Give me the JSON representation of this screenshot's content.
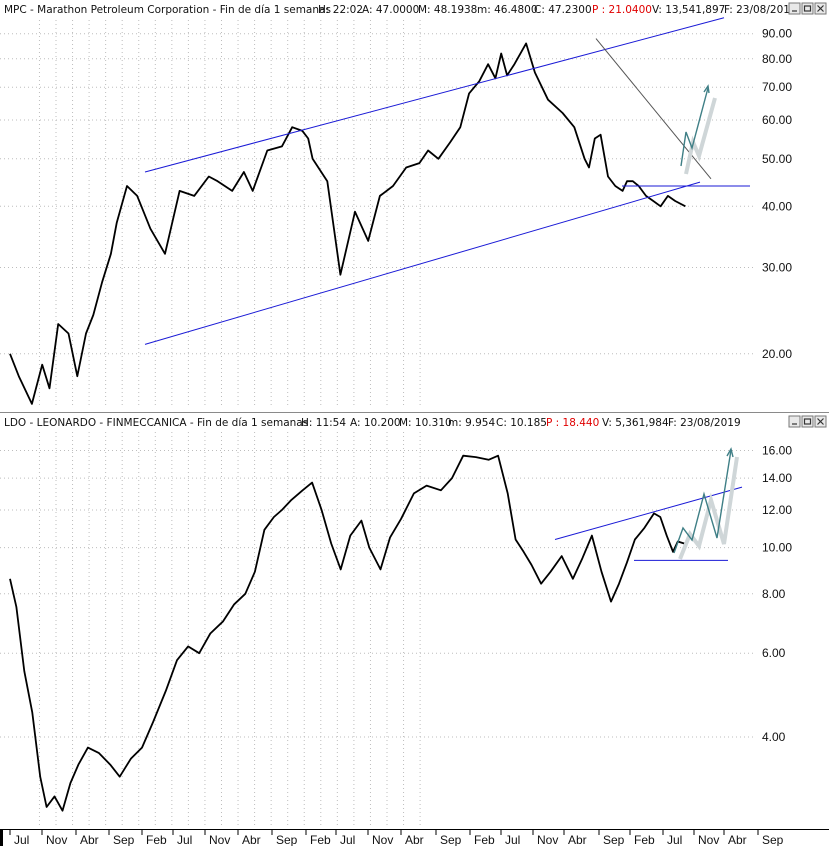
{
  "colors": {
    "price_line": "#000000",
    "channel_line": "#1a1ad6",
    "trend_gray": "#555555",
    "projection": "#3f7f86",
    "projection_shadow": "#cfd6d8",
    "header_red": "#e00000",
    "grid": "#bdbdbd"
  },
  "window_controls": [
    "minimize-icon",
    "restore-icon",
    "close-icon"
  ],
  "chart_data": [
    {
      "type": "line",
      "scale": "log",
      "grid": true,
      "header": {
        "prefix": "MPC - Marathon Petroleum Corporation - Fin de día 1 semanas",
        "h": "H: 22:02",
        "a": "A: 47.0000",
        "m": "M: 48.1938",
        "mn": "m: 46.4800",
        "c": "C: 47.2300",
        "p": "P : 21.0400",
        "v": "V: 13,541,897",
        "f": "F: 23/08/201"
      },
      "yticks": [
        "90.00",
        "80.00",
        "70.00",
        "60.00",
        "50.00",
        "40.00",
        "30.00",
        "20.00"
      ],
      "ylim": [
        15.5,
        96
      ],
      "series": [
        {
          "x": [
            0,
            0.6,
            1.5,
            2.2,
            2.7,
            3.3,
            4.0,
            4.6,
            5.2,
            5.7,
            6.3,
            6.9,
            7.3,
            8.0,
            8.7,
            9.6,
            10.6,
            11.6,
            12.6,
            13.6,
            14.2,
            15.2,
            16.0,
            16.6,
            17.6,
            18.6,
            19.3,
            20.0,
            20.4,
            20.7,
            21.7,
            22.6,
            23.6,
            24.5,
            25.3,
            26.2,
            27.1,
            28.0,
            28.6,
            29.3,
            30.1,
            30.8,
            31.4,
            32.1,
            32.7,
            33.2,
            33.6,
            34.0,
            34.5,
            35.3,
            35.9,
            36.8,
            37.8,
            38.6,
            39.3,
            39.6,
            40.0,
            40.4,
            40.9,
            41.4,
            41.9,
            42.2,
            42.6,
            43.0,
            43.5,
            44.0,
            44.5,
            45.0,
            45.5,
            46.2
          ],
          "values": [
            20,
            18,
            15.8,
            19,
            17,
            23,
            22,
            18,
            22,
            24,
            28,
            32,
            37,
            44,
            42,
            36,
            32,
            43,
            42,
            46,
            45,
            43,
            47,
            43,
            52,
            53,
            58,
            57,
            55,
            50,
            45,
            29,
            39,
            34,
            42,
            44,
            48,
            49,
            52,
            50,
            54,
            58,
            68,
            72,
            78,
            73,
            82,
            74,
            78,
            86,
            75,
            66,
            62,
            58,
            50,
            48,
            55,
            56,
            46,
            44,
            43,
            45,
            45,
            44,
            42,
            41,
            40,
            42,
            41,
            40
          ]
        }
      ],
      "x_tick_labels": [
        "Jul",
        "Nov",
        "Abr",
        "Sep",
        "Feb",
        "Jul",
        "Nov",
        "Abr",
        "Sep",
        "Feb",
        "Jul",
        "Nov",
        "Abr",
        "Sep",
        "Feb",
        "Jul",
        "Nov",
        "Abr",
        "Sep",
        "Feb",
        "Jul",
        "Nov",
        "Abr",
        "Sep"
      ]
    },
    {
      "type": "line",
      "scale": "log",
      "grid": true,
      "header": {
        "prefix": "LDO - LEONARDO - FINMECCANICA - Fin de día 1 semanas",
        "h": "H: 11:54",
        "a": "A: 10.200",
        "m": "M: 10.310",
        "mn": "m: 9.954",
        "c": "C: 10.185",
        "p": "P : 18.440",
        "v": "V: 5,361,984",
        "f": "F: 23/08/2019"
      },
      "yticks": [
        "16.00",
        "14.00",
        "12.00",
        "10.00",
        "8.00",
        "6.00",
        "4.00"
      ],
      "ylim": [
        2.6,
        17.5
      ],
      "series": [
        {
          "x": [
            0,
            0.4,
            0.9,
            1.4,
            1.9,
            2.3,
            2.8,
            3.3,
            3.8,
            4.3,
            4.9,
            5.6,
            6.3,
            6.9,
            7.6,
            8.3,
            9.0,
            9.8,
            10.5,
            11.2,
            11.9,
            12.6,
            13.4,
            14.1,
            14.8,
            15.4,
            16.0,
            16.6,
            17.1,
            17.7,
            18.4,
            19.0,
            19.6,
            20.2,
            20.8,
            21.4,
            22.1,
            22.6,
            23.3,
            23.9,
            24.6,
            25.4,
            26.2,
            27.1,
            27.8,
            28.5,
            29.3,
            30.1,
            30.7,
            31.3,
            31.8,
            32.3,
            32.8,
            33.4,
            34.0,
            34.7,
            35.4,
            36.0,
            36.6,
            37.2,
            37.8,
            38.3,
            38.8,
            39.3,
            39.9,
            40.5,
            40.9,
            41.3,
            41.7,
            42.0,
            42.4
          ],
          "values": [
            8.6,
            7.5,
            5.5,
            4.5,
            3.3,
            2.85,
            3.0,
            2.8,
            3.2,
            3.5,
            3.8,
            3.7,
            3.5,
            3.3,
            3.6,
            3.8,
            4.3,
            5.0,
            5.8,
            6.2,
            6.0,
            6.6,
            7.0,
            7.6,
            8.0,
            8.9,
            10.9,
            11.6,
            12.0,
            12.6,
            13.2,
            13.7,
            12.0,
            10.2,
            9.0,
            10.6,
            11.4,
            10.0,
            9.0,
            10.5,
            11.5,
            13.0,
            13.5,
            13.2,
            14.0,
            15.6,
            15.5,
            15.3,
            15.6,
            13.0,
            10.4,
            9.8,
            9.2,
            8.4,
            8.9,
            9.6,
            8.6,
            9.5,
            10.6,
            8.9,
            7.7,
            8.4,
            9.3,
            10.4,
            11.0,
            11.8,
            11.6,
            10.6,
            9.8,
            10.3,
            10.2
          ]
        }
      ],
      "x_tick_labels": [
        "Jul",
        "Nov",
        "Abr",
        "Sep",
        "Feb",
        "Jul",
        "Nov",
        "Abr",
        "Sep",
        "Feb",
        "Jul",
        "Nov",
        "Abr",
        "Sep",
        "Feb",
        "Jul",
        "Nov",
        "Abr",
        "Sep",
        "Feb",
        "Jul",
        "Nov",
        "Abr",
        "Sep"
      ]
    }
  ]
}
